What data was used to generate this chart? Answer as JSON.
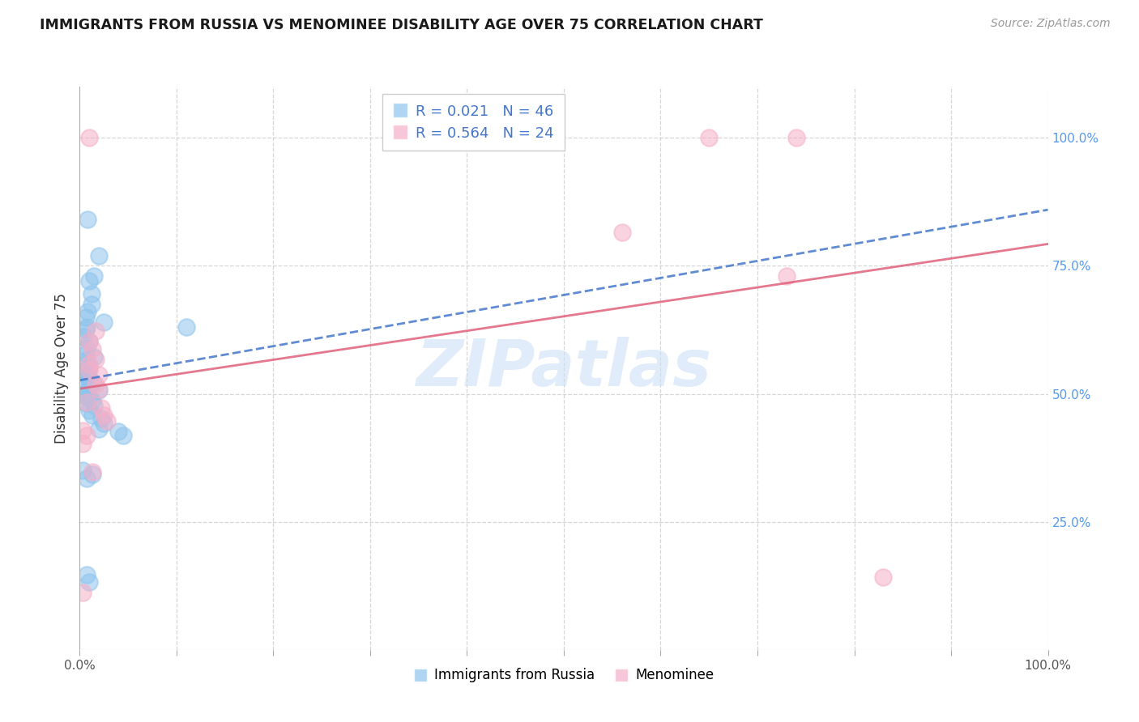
{
  "title": "IMMIGRANTS FROM RUSSIA VS MENOMINEE DISABILITY AGE OVER 75 CORRELATION CHART",
  "source": "Source: ZipAtlas.com",
  "ylabel": "Disability Age Over 75",
  "legend_label1": "Immigrants from Russia",
  "legend_label2": "Menominee",
  "R1": 0.021,
  "N1": 46,
  "R2": 0.564,
  "N2": 24,
  "right_yticks": [
    "100.0%",
    "75.0%",
    "50.0%",
    "25.0%"
  ],
  "right_ytick_vals": [
    1.0,
    0.75,
    0.5,
    0.25
  ],
  "blue_color": "#8ec4ed",
  "pink_color": "#f5afc8",
  "blue_line_color": "#4477cc",
  "pink_line_color": "#e0607a",
  "watermark_text": "ZIPatlas",
  "xlim": [
    0.0,
    1.0
  ],
  "ylim": [
    0.0,
    1.1
  ],
  "blue_points": [
    [
      0.008,
      0.84
    ],
    [
      0.02,
      0.77
    ],
    [
      0.015,
      0.73
    ],
    [
      0.01,
      0.72
    ],
    [
      0.012,
      0.695
    ],
    [
      0.012,
      0.675
    ],
    [
      0.008,
      0.66
    ],
    [
      0.006,
      0.65
    ],
    [
      0.025,
      0.64
    ],
    [
      0.007,
      0.63
    ],
    [
      0.006,
      0.625
    ],
    [
      0.004,
      0.612
    ],
    [
      0.01,
      0.602
    ],
    [
      0.007,
      0.59
    ],
    [
      0.11,
      0.63
    ],
    [
      0.006,
      0.578
    ],
    [
      0.015,
      0.572
    ],
    [
      0.007,
      0.565
    ],
    [
      0.003,
      0.556
    ],
    [
      0.01,
      0.552
    ],
    [
      0.004,
      0.544
    ],
    [
      0.007,
      0.54
    ],
    [
      0.009,
      0.533
    ],
    [
      0.01,
      0.527
    ],
    [
      0.014,
      0.522
    ],
    [
      0.003,
      0.517
    ],
    [
      0.01,
      0.513
    ],
    [
      0.02,
      0.507
    ],
    [
      0.007,
      0.502
    ],
    [
      0.003,
      0.498
    ],
    [
      0.01,
      0.492
    ],
    [
      0.013,
      0.487
    ],
    [
      0.006,
      0.482
    ],
    [
      0.015,
      0.477
    ],
    [
      0.01,
      0.468
    ],
    [
      0.013,
      0.458
    ],
    [
      0.022,
      0.452
    ],
    [
      0.025,
      0.443
    ],
    [
      0.02,
      0.432
    ],
    [
      0.04,
      0.427
    ],
    [
      0.045,
      0.418
    ],
    [
      0.003,
      0.35
    ],
    [
      0.013,
      0.342
    ],
    [
      0.007,
      0.335
    ],
    [
      0.007,
      0.147
    ],
    [
      0.01,
      0.132
    ]
  ],
  "pink_points": [
    [
      0.01,
      1.0
    ],
    [
      0.65,
      1.0
    ],
    [
      0.74,
      1.0
    ],
    [
      0.56,
      0.815
    ],
    [
      0.73,
      0.73
    ],
    [
      0.016,
      0.622
    ],
    [
      0.01,
      0.602
    ],
    [
      0.013,
      0.588
    ],
    [
      0.016,
      0.567
    ],
    [
      0.01,
      0.558
    ],
    [
      0.01,
      0.547
    ],
    [
      0.02,
      0.538
    ],
    [
      0.016,
      0.518
    ],
    [
      0.02,
      0.508
    ],
    [
      0.007,
      0.483
    ],
    [
      0.022,
      0.473
    ],
    [
      0.025,
      0.458
    ],
    [
      0.028,
      0.447
    ],
    [
      0.003,
      0.428
    ],
    [
      0.007,
      0.418
    ],
    [
      0.003,
      0.403
    ],
    [
      0.013,
      0.348
    ],
    [
      0.003,
      0.112
    ],
    [
      0.83,
      0.142
    ]
  ]
}
